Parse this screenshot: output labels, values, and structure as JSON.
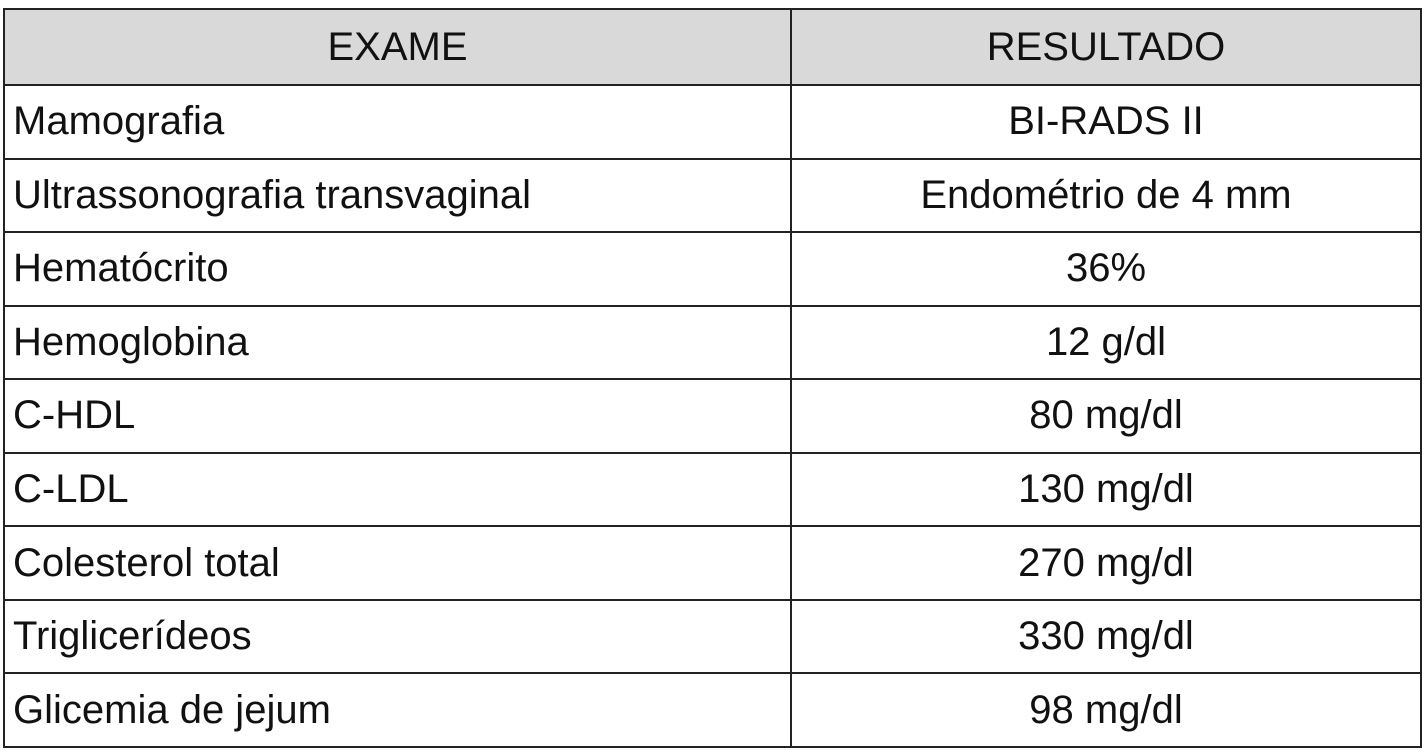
{
  "table": {
    "header": [
      "EXAME",
      "RESULTADO"
    ],
    "rows": [
      [
        "Mamografia",
        "BI-RADS II"
      ],
      [
        "Ultrassonografia transvaginal",
        "Endométrio de 4 mm"
      ],
      [
        "Hematócrito",
        "36%"
      ],
      [
        "Hemoglobina",
        "12 g/dl"
      ],
      [
        "C-HDL",
        "80 mg/dl"
      ],
      [
        "C-LDL",
        "130 mg/dl"
      ],
      [
        "Colesterol total",
        "270 mg/dl"
      ],
      [
        "Triglicerídeos",
        "330 mg/dl"
      ],
      [
        "Glicemia de jejum",
        "98 mg/dl"
      ]
    ]
  }
}
